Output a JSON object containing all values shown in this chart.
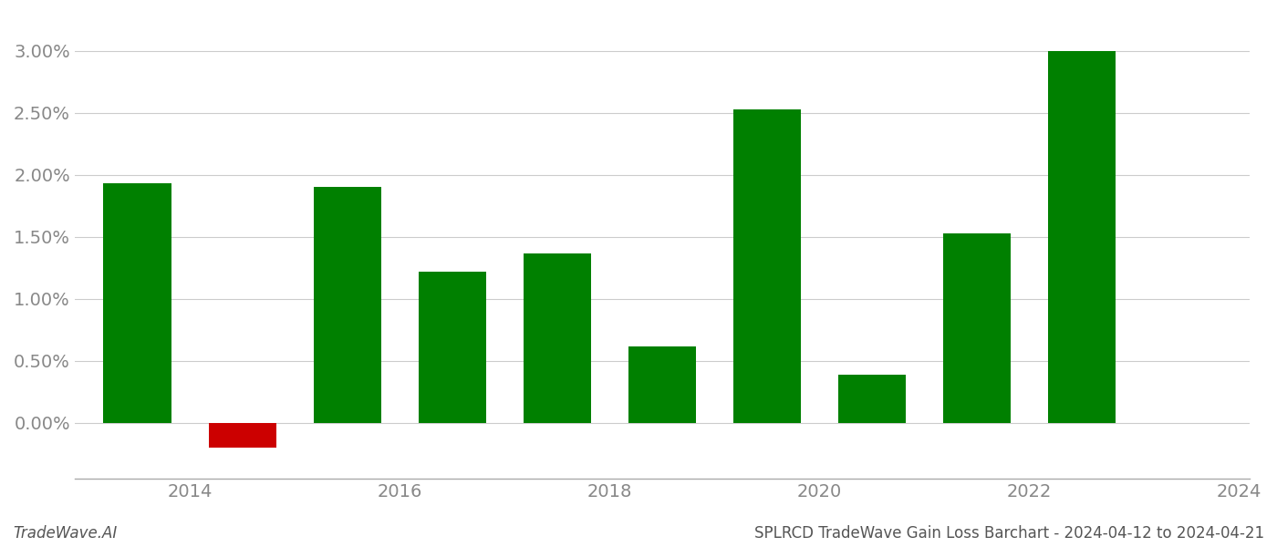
{
  "years": [
    2014,
    2015,
    2016,
    2017,
    2018,
    2019,
    2020,
    2021,
    2022,
    2023
  ],
  "values": [
    0.0193,
    -0.002,
    0.019,
    0.0122,
    0.0137,
    0.0062,
    0.0253,
    0.0039,
    0.0153,
    0.03
  ],
  "colors": [
    "#008000",
    "#cc0000",
    "#008000",
    "#008000",
    "#008000",
    "#008000",
    "#008000",
    "#008000",
    "#008000",
    "#008000"
  ],
  "title": "SPLRCD TradeWave Gain Loss Barchart - 2024-04-12 to 2024-04-21",
  "footer_left": "TradeWave.AI",
  "ylim_min": -0.0045,
  "ylim_max": 0.033,
  "background_color": "#ffffff",
  "grid_color": "#cccccc",
  "bar_width": 0.65,
  "xtick_positions": [
    2014.5,
    2016.5,
    2018.5,
    2020.5,
    2022.5,
    2024.5
  ],
  "xtick_labels": [
    "2014",
    "2016",
    "2018",
    "2020",
    "2022",
    "2024"
  ],
  "xlim_min": 2013.4,
  "xlim_max": 2024.6,
  "yticks": [
    0.0,
    0.005,
    0.01,
    0.015,
    0.02,
    0.025,
    0.03
  ],
  "title_fontsize": 12,
  "tick_fontsize": 14,
  "footer_fontsize": 12
}
